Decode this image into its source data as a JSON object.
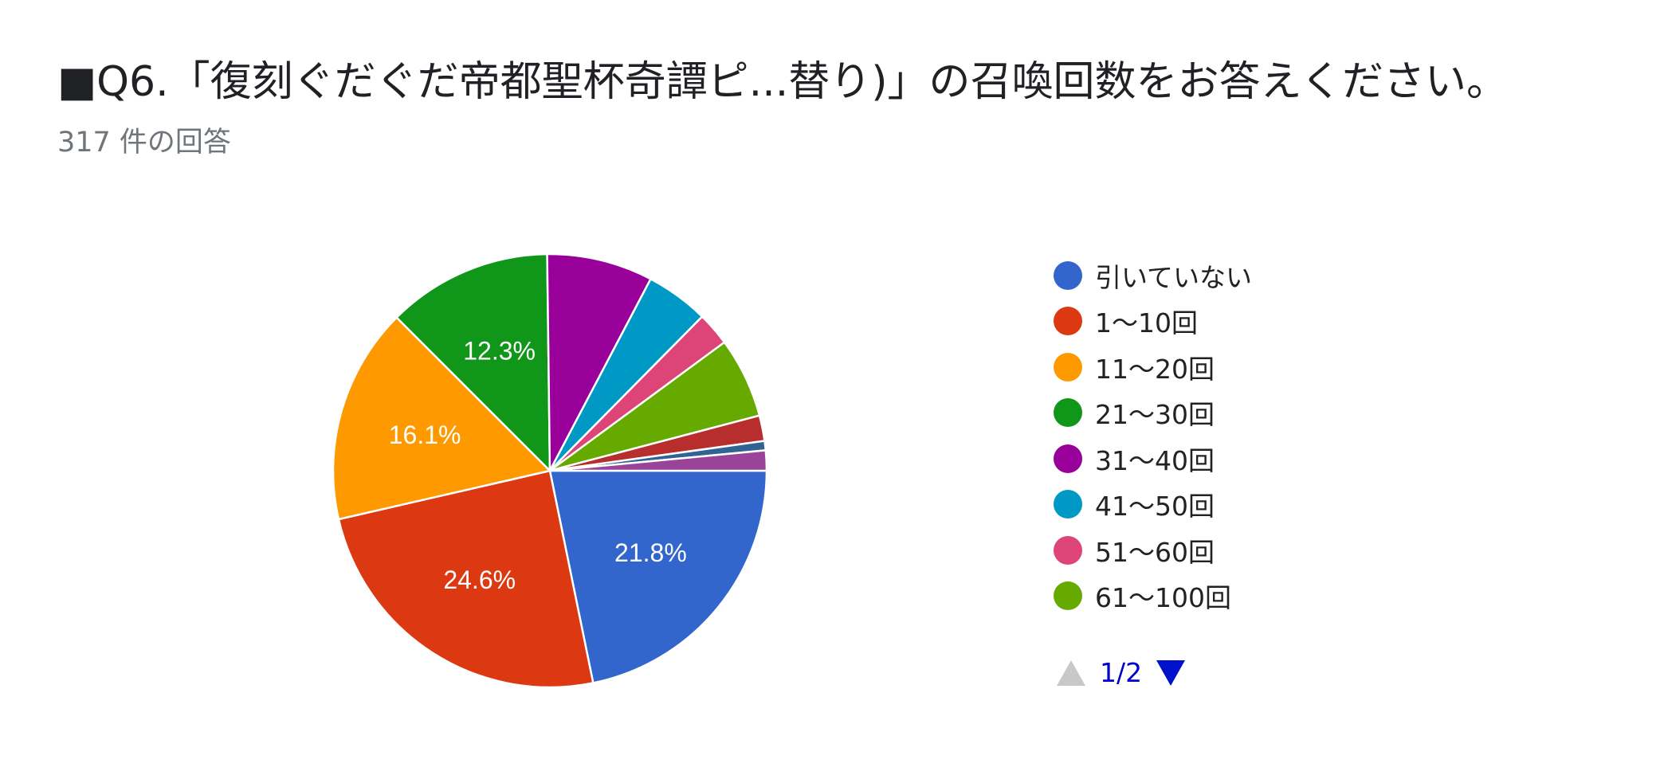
{
  "header": {
    "title": "■Q6.「復刻ぐだぐだ帝都聖杯奇譚ピ...替り)」の召喚回数をお答えください。",
    "subtitle": "317 件の回答"
  },
  "pager": {
    "label": "1/2",
    "prev_icon": "triangle-up-icon",
    "next_icon": "triangle-down-icon"
  },
  "chart_data": {
    "type": "pie",
    "title": "■Q6.「復刻ぐだぐだ帝都聖杯奇譚ピ...替り)」の召喚回数をお答えください。",
    "subtitle": "317 件の回答",
    "total_responses": 317,
    "legend_position": "right",
    "slices": [
      {
        "label": "引いていない",
        "value": 21.8,
        "color": "#3366cc",
        "show_label": true
      },
      {
        "label": "1〜10回",
        "value": 24.6,
        "color": "#dc3912",
        "show_label": true
      },
      {
        "label": "11〜20回",
        "value": 16.1,
        "color": "#ff9900",
        "show_label": true
      },
      {
        "label": "21〜30回",
        "value": 12.3,
        "color": "#109618",
        "show_label": true
      },
      {
        "label": "31〜40回",
        "value": 7.9,
        "color": "#990099",
        "show_label": false
      },
      {
        "label": "41〜50回",
        "value": 4.7,
        "color": "#0099c6",
        "show_label": false
      },
      {
        "label": "51〜60回",
        "value": 2.5,
        "color": "#dd4477",
        "show_label": false
      },
      {
        "label": "61〜100回",
        "value": 6.0,
        "color": "#66aa00",
        "show_label": false
      },
      {
        "label": "",
        "value": 1.9,
        "color": "#b82e2e",
        "show_label": false
      },
      {
        "label": "",
        "value": 0.7,
        "color": "#316395",
        "show_label": false
      },
      {
        "label": "",
        "value": 1.5,
        "color": "#994499",
        "show_label": false
      }
    ]
  }
}
